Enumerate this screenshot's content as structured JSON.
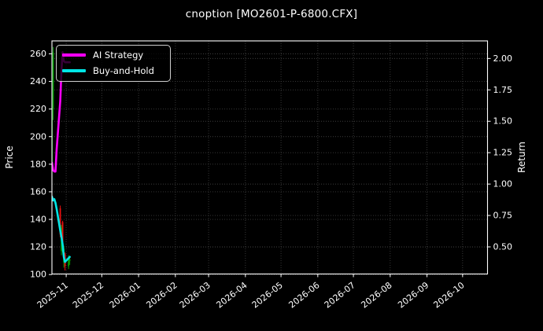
{
  "chart_data": {
    "type": "line",
    "subtype": "candlestick-price-with-return-lines",
    "title": "cnoption [MO2601-P-6800.CFX]",
    "theme": {
      "background": "#000000",
      "text_color": "#ffffff",
      "grid_color": "#3d3d3d",
      "spine_color": "#ffffff",
      "grid_style": "dotted",
      "legend_border": "#cfcfcf"
    },
    "legend_position": "upper-left",
    "x_axis": {
      "tick_labels": [
        "2025-11",
        "2025-12",
        "2026-01",
        "2026-02",
        "2026-03",
        "2026-04",
        "2026-05",
        "2026-06",
        "2026-07",
        "2026-08",
        "2026-09",
        "2026-10"
      ],
      "range": [
        "2025-10-20",
        "2026-10-22"
      ],
      "tick_rotation_deg": 38
    },
    "left_axis": {
      "label": "Price",
      "ticks": [
        100,
        120,
        140,
        160,
        180,
        200,
        220,
        240,
        260
      ],
      "range": [
        100.4,
        269.4
      ]
    },
    "right_axis": {
      "label": "Return",
      "ticks": [
        0.5,
        0.75,
        1.0,
        1.25,
        1.5,
        1.75,
        2.0
      ],
      "range": [
        0.284,
        2.14
      ]
    },
    "dates": [
      "2025-10-20",
      "2025-10-21",
      "2025-10-22",
      "2025-10-23",
      "2025-10-24",
      "2025-10-27",
      "2025-10-28",
      "2025-10-29",
      "2025-10-30",
      "2025-10-31",
      "2025-11-03",
      "2025-11-04"
    ],
    "series": [
      {
        "name": "AI Strategy",
        "color": "#ff00ff",
        "axis": "right",
        "line_width": 2.6,
        "values": [
          1.17,
          1.11,
          1.1,
          1.1,
          1.28,
          1.66,
          1.9,
          2.05,
          1.98,
          1.97,
          1.97,
          1.97
        ]
      },
      {
        "name": "Buy-and-Hold",
        "color": "#00e5e5",
        "axis": "right",
        "line_width": 2.6,
        "values": [
          0.9,
          0.87,
          0.88,
          0.85,
          0.8,
          0.63,
          0.58,
          0.52,
          0.42,
          0.38,
          0.41,
          0.42
        ]
      }
    ],
    "candles": {
      "axis": "left",
      "up_color": "#00a000",
      "down_color": "#ef1010",
      "data": [
        {
          "date": "2025-10-20",
          "open": 175,
          "high": 224,
          "low": 170,
          "close": 220
        },
        {
          "date": "2025-10-21",
          "open": 220,
          "high": 265,
          "low": 212,
          "close": 261
        },
        {
          "date": "2025-10-27",
          "open": 148,
          "high": 150,
          "low": 127,
          "close": 129
        },
        {
          "date": "2025-10-28",
          "open": 117,
          "high": 136,
          "low": 114,
          "close": 134
        },
        {
          "date": "2025-10-29",
          "open": 138,
          "high": 139,
          "low": 116,
          "close": 118
        },
        {
          "date": "2025-10-30",
          "open": 109,
          "high": 121,
          "low": 105,
          "close": 119
        },
        {
          "date": "2025-10-31",
          "open": 115,
          "high": 116,
          "low": 103,
          "close": 106
        },
        {
          "date": "2025-11-03",
          "open": 106,
          "high": 114,
          "low": 104,
          "close": 112
        },
        {
          "date": "2025-11-04",
          "open": 110,
          "high": 113,
          "low": 107,
          "close": 111
        }
      ]
    }
  }
}
